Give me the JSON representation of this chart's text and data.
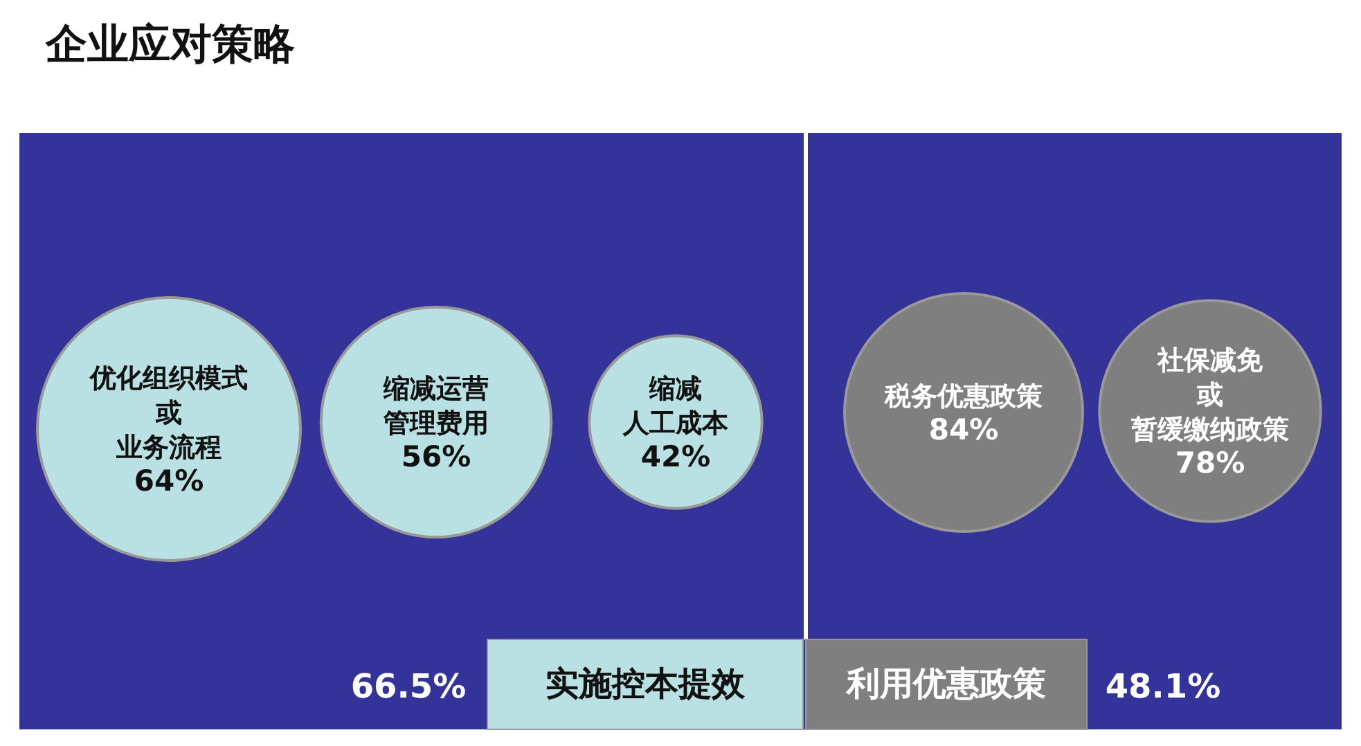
{
  "chart_data": {
    "type": "other",
    "title": "企业应对策略",
    "categories": [
      "优化组织模式或业务流程",
      "缩减运营管理费用",
      "缩减人工成本",
      "税务优惠政策",
      "社保减免或暂缓缴纳政策"
    ],
    "series": [
      {
        "name": "实施控本提效",
        "color": "#b9e1e3",
        "values": [
          64,
          56,
          42,
          null,
          null
        ],
        "value_labels": [
          "64%",
          "56%",
          "42%",
          null,
          null
        ]
      },
      {
        "name": "利用优惠政策",
        "color": "#7f7f7f",
        "values": [
          null,
          null,
          null,
          84,
          78
        ],
        "value_labels": [
          null,
          null,
          null,
          "84%",
          "78%"
        ]
      }
    ],
    "annotations": [
      "66.5%",
      "48.1%"
    ]
  }
}
